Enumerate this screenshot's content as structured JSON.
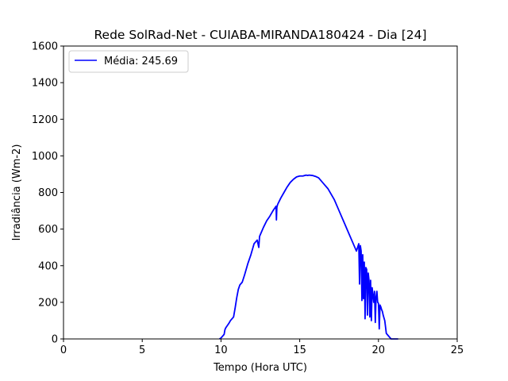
{
  "chart_data": {
    "type": "line",
    "title": "Rede SolRad-Net - CUIABA-MIRANDA180424 - Dia [24]",
    "xlabel": "Tempo (Hora UTC)",
    "ylabel": "Irradiância (Wm-2)",
    "xlim": [
      0,
      25
    ],
    "ylim": [
      0,
      1600
    ],
    "xticks": [
      0,
      5,
      10,
      15,
      20,
      25
    ],
    "yticks": [
      0,
      200,
      400,
      600,
      800,
      1000,
      1200,
      1400,
      1600
    ],
    "grid": false,
    "legend_position": "top-left",
    "series": [
      {
        "name": "Média: 245.69",
        "color": "#0000ff",
        "x": [
          9.9,
          10.0,
          10.1,
          10.2,
          10.25,
          10.3,
          10.5,
          10.6,
          10.8,
          10.9,
          11.0,
          11.1,
          11.2,
          11.35,
          11.5,
          11.7,
          11.9,
          12.1,
          12.3,
          12.4,
          12.45,
          12.5,
          12.7,
          12.9,
          13.1,
          13.3,
          13.5,
          13.52,
          13.55,
          13.6,
          13.8,
          14.0,
          14.2,
          14.4,
          14.6,
          14.8,
          15.0,
          15.2,
          15.4,
          15.5,
          15.6,
          15.8,
          16.0,
          16.2,
          16.4,
          16.6,
          16.8,
          17.0,
          17.2,
          17.4,
          17.6,
          17.8,
          18.0,
          18.2,
          18.4,
          18.6,
          18.75,
          18.8,
          18.85,
          18.9,
          18.95,
          19.0,
          19.05,
          19.1,
          19.15,
          19.2,
          19.25,
          19.3,
          19.35,
          19.4,
          19.45,
          19.5,
          19.55,
          19.6,
          19.65,
          19.7,
          19.75,
          19.8,
          19.85,
          19.9,
          19.95,
          20.0,
          20.05,
          20.1,
          20.15,
          20.2,
          20.25,
          20.3,
          20.35,
          20.4,
          20.5,
          20.6,
          20.7,
          20.75,
          20.8,
          21.0,
          21.1,
          21.2,
          21.25
        ],
        "y": [
          0,
          5,
          15,
          25,
          50,
          60,
          85,
          100,
          120,
          170,
          225,
          270,
          295,
          310,
          350,
          410,
          460,
          520,
          540,
          500,
          560,
          570,
          610,
          645,
          670,
          700,
          725,
          650,
          720,
          735,
          770,
          800,
          830,
          855,
          872,
          885,
          890,
          890,
          895,
          893,
          895,
          893,
          888,
          880,
          860,
          840,
          820,
          790,
          760,
          720,
          680,
          640,
          600,
          560,
          520,
          480,
          520,
          300,
          510,
          480,
          210,
          460,
          220,
          420,
          110,
          390,
          380,
          130,
          360,
          320,
          120,
          320,
          100,
          280,
          240,
          200,
          260,
          90,
          230,
          260,
          200,
          195,
          55,
          185,
          175,
          160,
          150,
          130,
          115,
          100,
          30,
          20,
          10,
          5,
          0,
          0,
          0,
          0,
          0
        ]
      }
    ]
  }
}
